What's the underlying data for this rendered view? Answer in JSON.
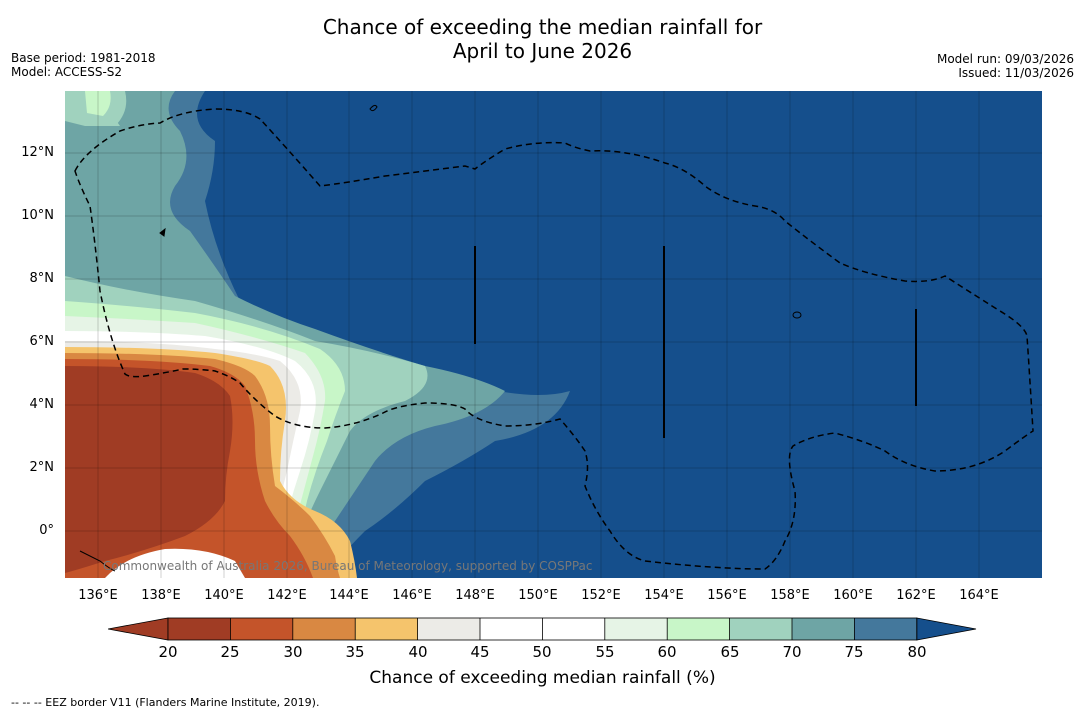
{
  "title_line1": "Chance of exceeding the median rainfall for",
  "title_line2": "April to June 2026",
  "meta_left": {
    "base_period": "Base period: 1981-2018",
    "model": "Model: ACCESS-S2"
  },
  "meta_right": {
    "model_run": "Model run: 09/03/2026",
    "issued": "Issued: 11/03/2026"
  },
  "x_ticks": [
    "136°E",
    "138°E",
    "140°E",
    "142°E",
    "144°E",
    "146°E",
    "148°E",
    "150°E",
    "152°E",
    "154°E",
    "156°E",
    "158°E",
    "160°E",
    "162°E",
    "164°E"
  ],
  "y_ticks": [
    "12°N",
    "10°N",
    "8°N",
    "6°N",
    "4°N",
    "2°N",
    "0°"
  ],
  "credit": "Commonwealth of Australia 2026, Bureau of Meteorology, supported by COSPPac",
  "colorbar": {
    "ticks": [
      "20",
      "25",
      "30",
      "35",
      "40",
      "45",
      "50",
      "55",
      "60",
      "65",
      "70",
      "75",
      "80"
    ],
    "label": "Chance of exceeding median rainfall (%)",
    "colors": [
      "#a03c24",
      "#c4542a",
      "#d98842",
      "#f5c46c",
      "#ecebe7",
      "#ffffff",
      "#ffffff",
      "#e6f4e6",
      "#c8f6c8",
      "#a0d2be",
      "#6ea5a5",
      "#44789c",
      "#1a4e8a",
      "#154f8c"
    ]
  },
  "eez_note": "--  --  -- EEZ border V11 (Flanders Marine Institute, 2019)."
}
